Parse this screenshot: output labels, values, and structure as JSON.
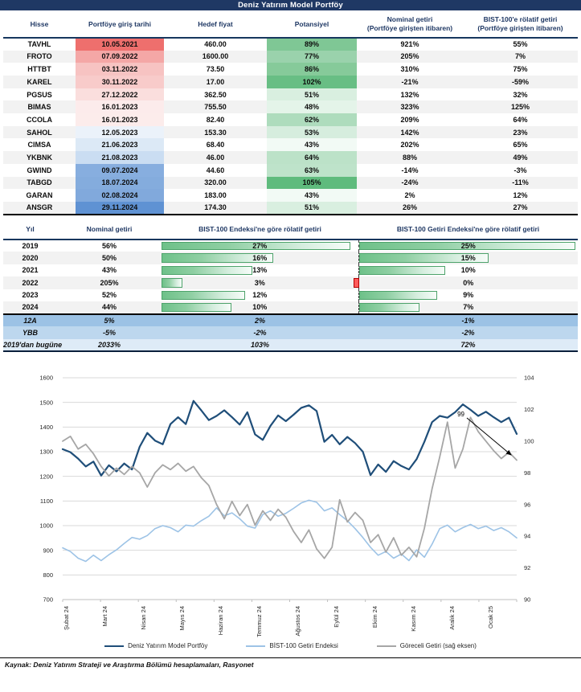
{
  "title": "Deniz Yatırım Model Portföy",
  "colors": {
    "navy": "#1F3864",
    "header_rule": "#17375E",
    "row_stripe": "#F2F2F2",
    "bar_green_border": "#4EA36B",
    "neg_bar_red": "#FF5B5B",
    "gridline": "#D9D9D9"
  },
  "portfolio_table": {
    "headers": [
      {
        "t": "Hisse",
        "s": ""
      },
      {
        "t": "Portföye giriş tarihi",
        "s": ""
      },
      {
        "t": "Hedef fiyat",
        "s": ""
      },
      {
        "t": "Potansiyel",
        "s": ""
      },
      {
        "t": "Nominal getiri",
        "s": "(Portföye girişten itibaren)"
      },
      {
        "t": "BIST-100'e rölatif getiri",
        "s": "(Portföye girişten itibaren)"
      }
    ],
    "rows": [
      {
        "hisse": "TAVHL",
        "giris": "10.05.2021",
        "giris_bg": "#EE6F6D",
        "hedef": "460.00",
        "pot": "89%",
        "pot_bg": "#7FC795",
        "nominal": "921%",
        "rolatif": "55%"
      },
      {
        "hisse": "FROTO",
        "giris": "07.09.2022",
        "giris_bg": "#F4A7A6",
        "hedef": "1600.00",
        "pot": "77%",
        "pot_bg": "#9AD2AC",
        "nominal": "205%",
        "rolatif": "7%"
      },
      {
        "hisse": "HTTBT",
        "giris": "03.11.2022",
        "giris_bg": "#F7C3C2",
        "hedef": "73.50",
        "pot": "86%",
        "pot_bg": "#86CA9A",
        "nominal": "310%",
        "rolatif": "75%"
      },
      {
        "hisse": "KAREL",
        "giris": "30.11.2022",
        "giris_bg": "#F8CBCA",
        "hedef": "17.00",
        "pot": "102%",
        "pot_bg": "#68BE84",
        "nominal": "-21%",
        "rolatif": "-59%"
      },
      {
        "hisse": "PGSUS",
        "giris": "27.12.2022",
        "giris_bg": "#FADEDD",
        "hedef": "362.50",
        "pot": "51%",
        "pot_bg": "#D9EFE0",
        "nominal": "132%",
        "rolatif": "32%"
      },
      {
        "hisse": "BIMAS",
        "giris": "16.01.2023",
        "giris_bg": "#FCEBEB",
        "hedef": "755.50",
        "pot": "48%",
        "pot_bg": "#E4F4E9",
        "nominal": "323%",
        "rolatif": "125%"
      },
      {
        "hisse": "CCOLA",
        "giris": "16.01.2023",
        "giris_bg": "#FCECEB",
        "hedef": "82.40",
        "pot": "62%",
        "pot_bg": "#AEDCBD",
        "nominal": "209%",
        "rolatif": "64%"
      },
      {
        "hisse": "SAHOL",
        "giris": "12.05.2023",
        "giris_bg": "#EBF2FA",
        "hedef": "153.30",
        "pot": "53%",
        "pot_bg": "#D6EDDE",
        "nominal": "142%",
        "rolatif": "23%"
      },
      {
        "hisse": "CIMSA",
        "giris": "21.06.2023",
        "giris_bg": "#DCE9F6",
        "hedef": "68.40",
        "pot": "43%",
        "pot_bg": "#F2FAF5",
        "nominal": "202%",
        "rolatif": "65%"
      },
      {
        "hisse": "YKBNK",
        "giris": "21.08.2023",
        "giris_bg": "#CADDF2",
        "hedef": "46.00",
        "pot": "64%",
        "pot_bg": "#BCE2C8",
        "nominal": "88%",
        "rolatif": "49%"
      },
      {
        "hisse": "GWIND",
        "giris": "09.07.2024",
        "giris_bg": "#87AEDF",
        "hedef": "44.60",
        "pot": "63%",
        "pot_bg": "#BEE3CA",
        "nominal": "-14%",
        "rolatif": "-3%"
      },
      {
        "hisse": "TABGD",
        "giris": "18.07.2024",
        "giris_bg": "#84ACDD",
        "hedef": "320.00",
        "pot": "105%",
        "pot_bg": "#5FBB7D",
        "nominal": "-24%",
        "rolatif": "-11%"
      },
      {
        "hisse": "GARAN",
        "giris": "02.08.2024",
        "giris_bg": "#81A9DC",
        "hedef": "183.00",
        "pot": "43%",
        "pot_bg": "#F2FAF5",
        "nominal": "2%",
        "rolatif": "12%"
      },
      {
        "hisse": "ANSGR",
        "giris": "29.11.2024",
        "giris_bg": "#5F92D3",
        "hedef": "174.30",
        "pot": "51%",
        "pot_bg": "#D9EFE0",
        "nominal": "26%",
        "rolatif": "27%"
      }
    ]
  },
  "yearly_table": {
    "headers": [
      "Yıl",
      "Nominal getiri",
      "BIST-100 Endeksi'ne göre rölatif getiri",
      "BIST-100 Getiri Endeksi'ne göre rölatif getiri"
    ],
    "bar_max": {
      "rel1": 27,
      "rel2": 25
    },
    "rows": [
      {
        "yil": "2019",
        "nominal": "56%",
        "rel1": 27,
        "rel1_label": "27%",
        "rel2": 25,
        "rel2_label": "25%"
      },
      {
        "yil": "2020",
        "nominal": "50%",
        "rel1": 16,
        "rel1_label": "16%",
        "rel2": 15,
        "rel2_label": "15%"
      },
      {
        "yil": "2021",
        "nominal": "43%",
        "rel1": 13,
        "rel1_label": "13%",
        "rel2": 10,
        "rel2_label": "10%"
      },
      {
        "yil": "2022",
        "nominal": "205%",
        "rel1": 3,
        "rel1_label": "3%",
        "rel2": -0.5,
        "rel2_label": "0%"
      },
      {
        "yil": "2023",
        "nominal": "52%",
        "rel1": 12,
        "rel1_label": "12%",
        "rel2": 9,
        "rel2_label": "9%"
      },
      {
        "yil": "2024",
        "nominal": "44%",
        "rel1": 10,
        "rel1_label": "10%",
        "rel2": 7,
        "rel2_label": "7%"
      }
    ],
    "summary_rows": [
      {
        "yil": "12A",
        "nominal": "5%",
        "rel1": "2%",
        "rel2": "-1%",
        "bg": "#9CC2E5"
      },
      {
        "yil": "YBB",
        "nominal": "-5%",
        "rel1": "-2%",
        "rel2": "-2%",
        "bg": "#BDD7EE"
      },
      {
        "yil": "2019'dan bugüne",
        "nominal": "2033%",
        "rel1": "103%",
        "rel2": "72%",
        "bg": "#DEEBF7"
      }
    ]
  },
  "chart_data": {
    "type": "line",
    "x_labels": [
      "Şubat 24",
      "Mart 24",
      "Nisan 24",
      "Mayıs 24",
      "Haziran 24",
      "Temmuz 24",
      "Ağustos 24",
      "Eylül 24",
      "Ekim 24",
      "Kasım 24",
      "Aralık 24",
      "Ocak 25"
    ],
    "left_axis": {
      "min": 700,
      "max": 1600,
      "step": 100
    },
    "right_axis": {
      "min": 90,
      "max": 104,
      "step": 2
    },
    "grid": true,
    "legend_position": "bottom",
    "series": [
      {
        "name": "Deniz Yatırım Model Portföy",
        "axis": "left",
        "color": "#1F4E79",
        "width": 2.2,
        "values": [
          1310,
          1298,
          1272,
          1240,
          1260,
          1203,
          1245,
          1220,
          1252,
          1228,
          1320,
          1376,
          1345,
          1330,
          1412,
          1440,
          1412,
          1506,
          1468,
          1428,
          1445,
          1468,
          1440,
          1410,
          1460,
          1370,
          1348,
          1405,
          1447,
          1424,
          1450,
          1478,
          1488,
          1465,
          1340,
          1368,
          1330,
          1360,
          1335,
          1300,
          1205,
          1248,
          1218,
          1262,
          1242,
          1228,
          1270,
          1340,
          1420,
          1445,
          1438,
          1460,
          1492,
          1470,
          1445,
          1462,
          1440,
          1420,
          1438,
          1372
        ]
      },
      {
        "name": "BİST-100 Getiri Endeksi",
        "axis": "left",
        "color": "#9DC3E6",
        "width": 1.6,
        "values": [
          910,
          895,
          868,
          855,
          880,
          858,
          882,
          902,
          928,
          952,
          945,
          960,
          988,
          1000,
          992,
          975,
          1002,
          998,
          1020,
          1038,
          1072,
          1040,
          1052,
          1028,
          998,
          990,
          1045,
          1060,
          1038,
          1050,
          1070,
          1092,
          1103,
          1095,
          1060,
          1072,
          1045,
          1020,
          988,
          952,
          912,
          880,
          895,
          868,
          885,
          858,
          902,
          872,
          925,
          988,
          1002,
          975,
          992,
          1005,
          988,
          998,
          980,
          992,
          975,
          950
        ]
      },
      {
        "name": "Göreceli Getiri (sağ eksen)",
        "axis": "right",
        "color": "#A6A6A6",
        "width": 1.8,
        "values": [
          100.0,
          100.3,
          99.5,
          99.8,
          99.2,
          98.4,
          97.8,
          98.3,
          97.9,
          98.4,
          98.0,
          97.1,
          98.0,
          98.5,
          98.2,
          98.6,
          98.1,
          98.4,
          97.7,
          97.2,
          96.0,
          95.1,
          96.2,
          95.3,
          96.0,
          94.7,
          95.6,
          95.0,
          95.7,
          95.2,
          94.3,
          93.6,
          94.4,
          93.2,
          92.6,
          93.3,
          96.3,
          94.9,
          95.5,
          95.0,
          93.6,
          94.1,
          93.0,
          93.9,
          92.8,
          93.3,
          92.7,
          94.5,
          97.0,
          99.0,
          101.2,
          98.3,
          99.5,
          101.5,
          100.6,
          100.0,
          99.4,
          98.9,
          99.3,
          98.8
        ]
      }
    ],
    "annotation": {
      "label": "99"
    }
  },
  "footer": "Kaynak: Deniz Yatırım Strateji ve Araştırma Bölümü hesaplamaları, Rasyonet"
}
